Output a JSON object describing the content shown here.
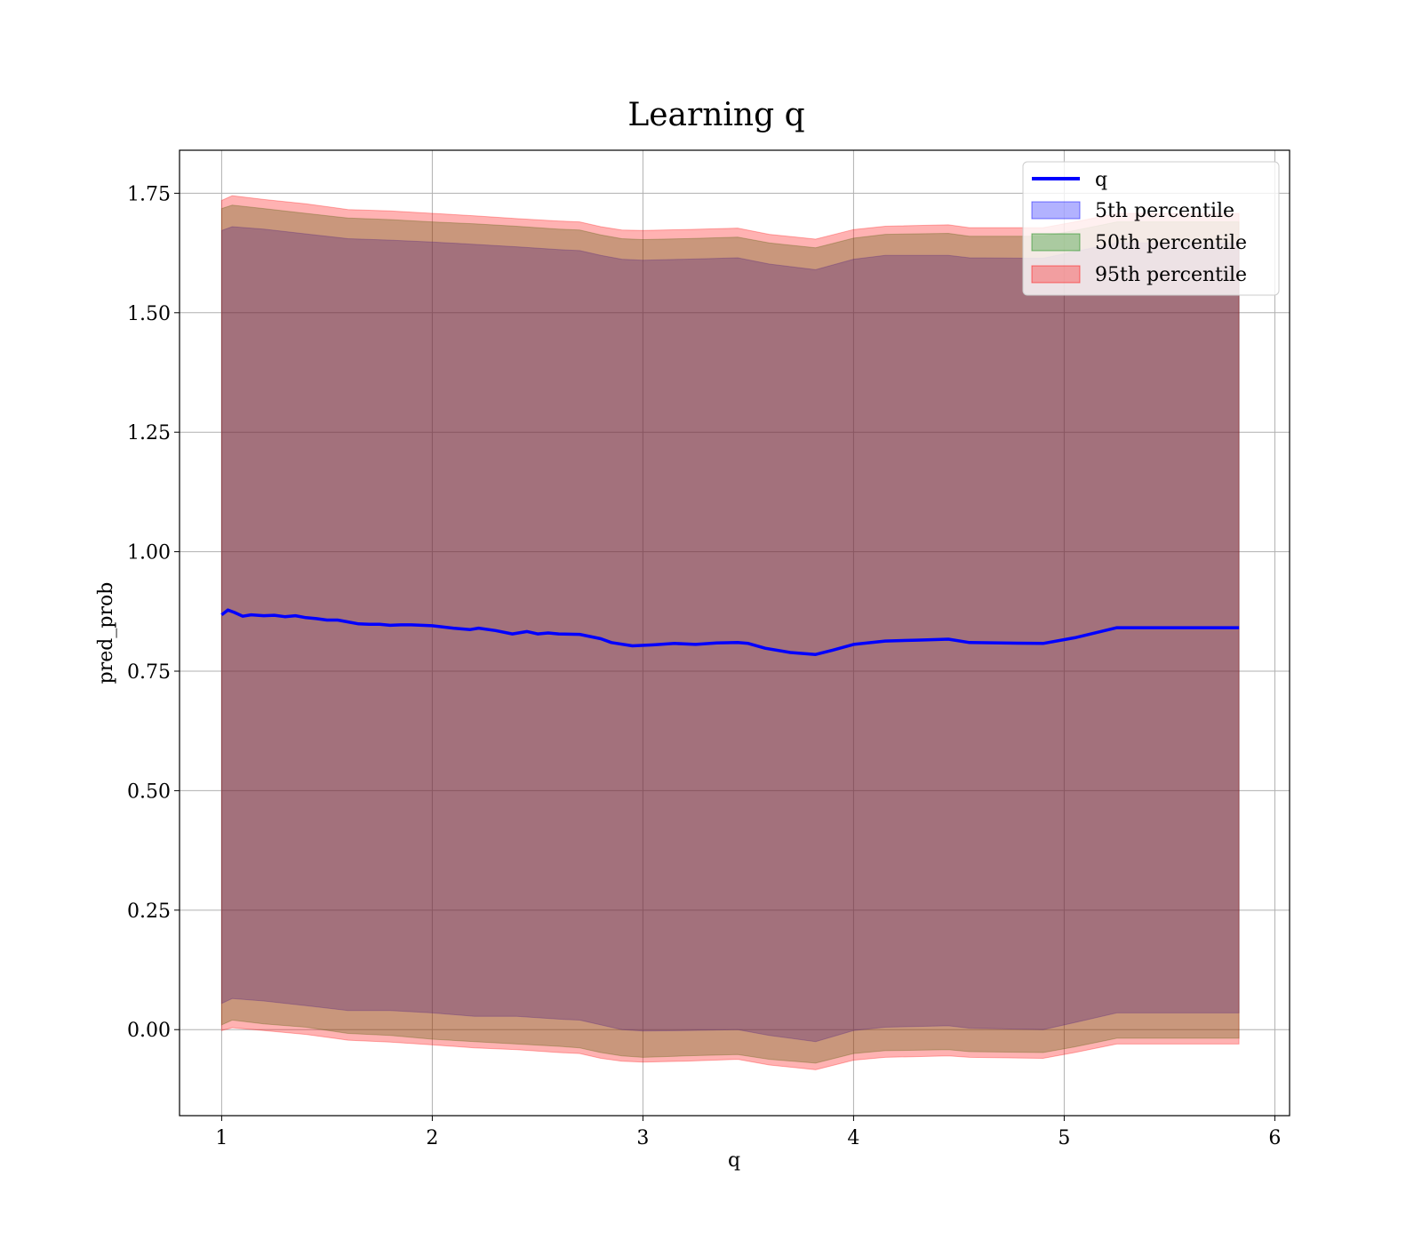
{
  "chart_data": {
    "type": "line",
    "title": "Learning q",
    "xlabel": "q",
    "ylabel": "pred_prob",
    "xlim": [
      0.8,
      6.07
    ],
    "ylim": [
      -0.18,
      1.84
    ],
    "xticks": [
      1,
      2,
      3,
      4,
      5,
      6
    ],
    "yticks": [
      0.0,
      0.25,
      0.5,
      0.75,
      1.0,
      1.25,
      1.5,
      1.75
    ],
    "xtick_labels": [
      "1",
      "2",
      "3",
      "4",
      "5",
      "6"
    ],
    "ytick_labels": [
      "0.00",
      "0.25",
      "0.50",
      "0.75",
      "1.00",
      "1.25",
      "1.50",
      "1.75"
    ],
    "grid": true,
    "legend_position": "top-right",
    "legend": [
      "q",
      "5th percentile",
      "50th percentile",
      "95th percentile"
    ],
    "line": {
      "name": "q",
      "color": "#0000ff",
      "x": [
        1.0,
        1.03,
        1.06,
        1.1,
        1.14,
        1.2,
        1.25,
        1.3,
        1.35,
        1.4,
        1.45,
        1.5,
        1.55,
        1.6,
        1.65,
        1.7,
        1.75,
        1.8,
        1.85,
        1.9,
        1.95,
        2.0,
        2.1,
        2.18,
        2.22,
        2.3,
        2.38,
        2.45,
        2.5,
        2.55,
        2.6,
        2.7,
        2.8,
        2.85,
        2.95,
        3.05,
        3.15,
        3.25,
        3.35,
        3.45,
        3.5,
        3.58,
        3.7,
        3.82,
        3.9,
        4.0,
        4.15,
        4.3,
        4.45,
        4.55,
        4.7,
        4.9,
        5.05,
        5.25,
        5.5,
        5.83
      ],
      "y": [
        0.868,
        0.878,
        0.873,
        0.865,
        0.868,
        0.866,
        0.867,
        0.864,
        0.866,
        0.862,
        0.86,
        0.857,
        0.857,
        0.853,
        0.849,
        0.848,
        0.848,
        0.846,
        0.847,
        0.847,
        0.846,
        0.845,
        0.84,
        0.837,
        0.84,
        0.835,
        0.828,
        0.833,
        0.828,
        0.83,
        0.828,
        0.827,
        0.818,
        0.81,
        0.803,
        0.805,
        0.808,
        0.806,
        0.809,
        0.81,
        0.808,
        0.798,
        0.789,
        0.785,
        0.794,
        0.806,
        0.813,
        0.815,
        0.817,
        0.81,
        0.809,
        0.808,
        0.82,
        0.841,
        0.841,
        0.841
      ]
    },
    "bands": [
      {
        "name": "5th percentile",
        "color": "#0000ff",
        "opacity": 0.3,
        "x": [
          1.0,
          1.05,
          1.2,
          1.4,
          1.6,
          1.8,
          2.0,
          2.2,
          2.4,
          2.6,
          2.7,
          2.8,
          2.9,
          3.0,
          3.2,
          3.45,
          3.6,
          3.82,
          4.0,
          4.15,
          4.45,
          4.55,
          4.9,
          5.05,
          5.25,
          5.83
        ],
        "lower": [
          0.055,
          0.065,
          0.06,
          0.05,
          0.04,
          0.04,
          0.035,
          0.028,
          0.028,
          0.022,
          0.02,
          0.01,
          0.0,
          -0.003,
          -0.002,
          0.0,
          -0.012,
          -0.025,
          -0.002,
          0.005,
          0.008,
          0.003,
          0.0,
          0.015,
          0.035,
          0.035
        ],
        "upper": [
          1.672,
          1.68,
          1.675,
          1.665,
          1.655,
          1.652,
          1.648,
          1.643,
          1.638,
          1.632,
          1.63,
          1.62,
          1.612,
          1.61,
          1.612,
          1.615,
          1.602,
          1.59,
          1.612,
          1.62,
          1.62,
          1.615,
          1.614,
          1.628,
          1.646,
          1.646
        ]
      },
      {
        "name": "50th percentile",
        "color": "#008000",
        "opacity": 0.3,
        "x": [
          1.0,
          1.05,
          1.2,
          1.4,
          1.6,
          1.8,
          2.0,
          2.2,
          2.4,
          2.6,
          2.7,
          2.8,
          2.9,
          3.0,
          3.2,
          3.45,
          3.6,
          3.82,
          4.0,
          4.15,
          4.45,
          4.55,
          4.9,
          5.05,
          5.25,
          5.83
        ],
        "lower": [
          0.01,
          0.02,
          0.012,
          0.005,
          -0.008,
          -0.012,
          -0.02,
          -0.025,
          -0.03,
          -0.035,
          -0.038,
          -0.048,
          -0.055,
          -0.058,
          -0.055,
          -0.052,
          -0.062,
          -0.07,
          -0.05,
          -0.044,
          -0.042,
          -0.046,
          -0.048,
          -0.036,
          -0.018,
          -0.018
        ],
        "upper": [
          1.718,
          1.725,
          1.718,
          1.708,
          1.698,
          1.695,
          1.69,
          1.686,
          1.681,
          1.675,
          1.673,
          1.663,
          1.655,
          1.653,
          1.655,
          1.658,
          1.646,
          1.636,
          1.656,
          1.664,
          1.666,
          1.66,
          1.66,
          1.672,
          1.69,
          1.69
        ]
      },
      {
        "name": "95th percentile",
        "color": "#ff0000",
        "opacity": 0.3,
        "x": [
          1.0,
          1.05,
          1.2,
          1.4,
          1.6,
          1.8,
          2.0,
          2.2,
          2.4,
          2.6,
          2.7,
          2.8,
          2.9,
          3.0,
          3.2,
          3.45,
          3.6,
          3.82,
          4.0,
          4.15,
          4.45,
          4.55,
          4.9,
          5.05,
          5.25,
          5.83
        ],
        "lower": [
          -0.002,
          0.004,
          -0.002,
          -0.01,
          -0.022,
          -0.026,
          -0.032,
          -0.038,
          -0.042,
          -0.048,
          -0.05,
          -0.06,
          -0.066,
          -0.068,
          -0.066,
          -0.062,
          -0.074,
          -0.084,
          -0.064,
          -0.058,
          -0.055,
          -0.058,
          -0.06,
          -0.048,
          -0.03,
          -0.03
        ],
        "upper": [
          1.735,
          1.745,
          1.737,
          1.728,
          1.716,
          1.713,
          1.708,
          1.703,
          1.697,
          1.692,
          1.69,
          1.68,
          1.673,
          1.672,
          1.674,
          1.677,
          1.664,
          1.654,
          1.674,
          1.681,
          1.684,
          1.678,
          1.678,
          1.69,
          1.708,
          1.708
        ]
      }
    ]
  }
}
